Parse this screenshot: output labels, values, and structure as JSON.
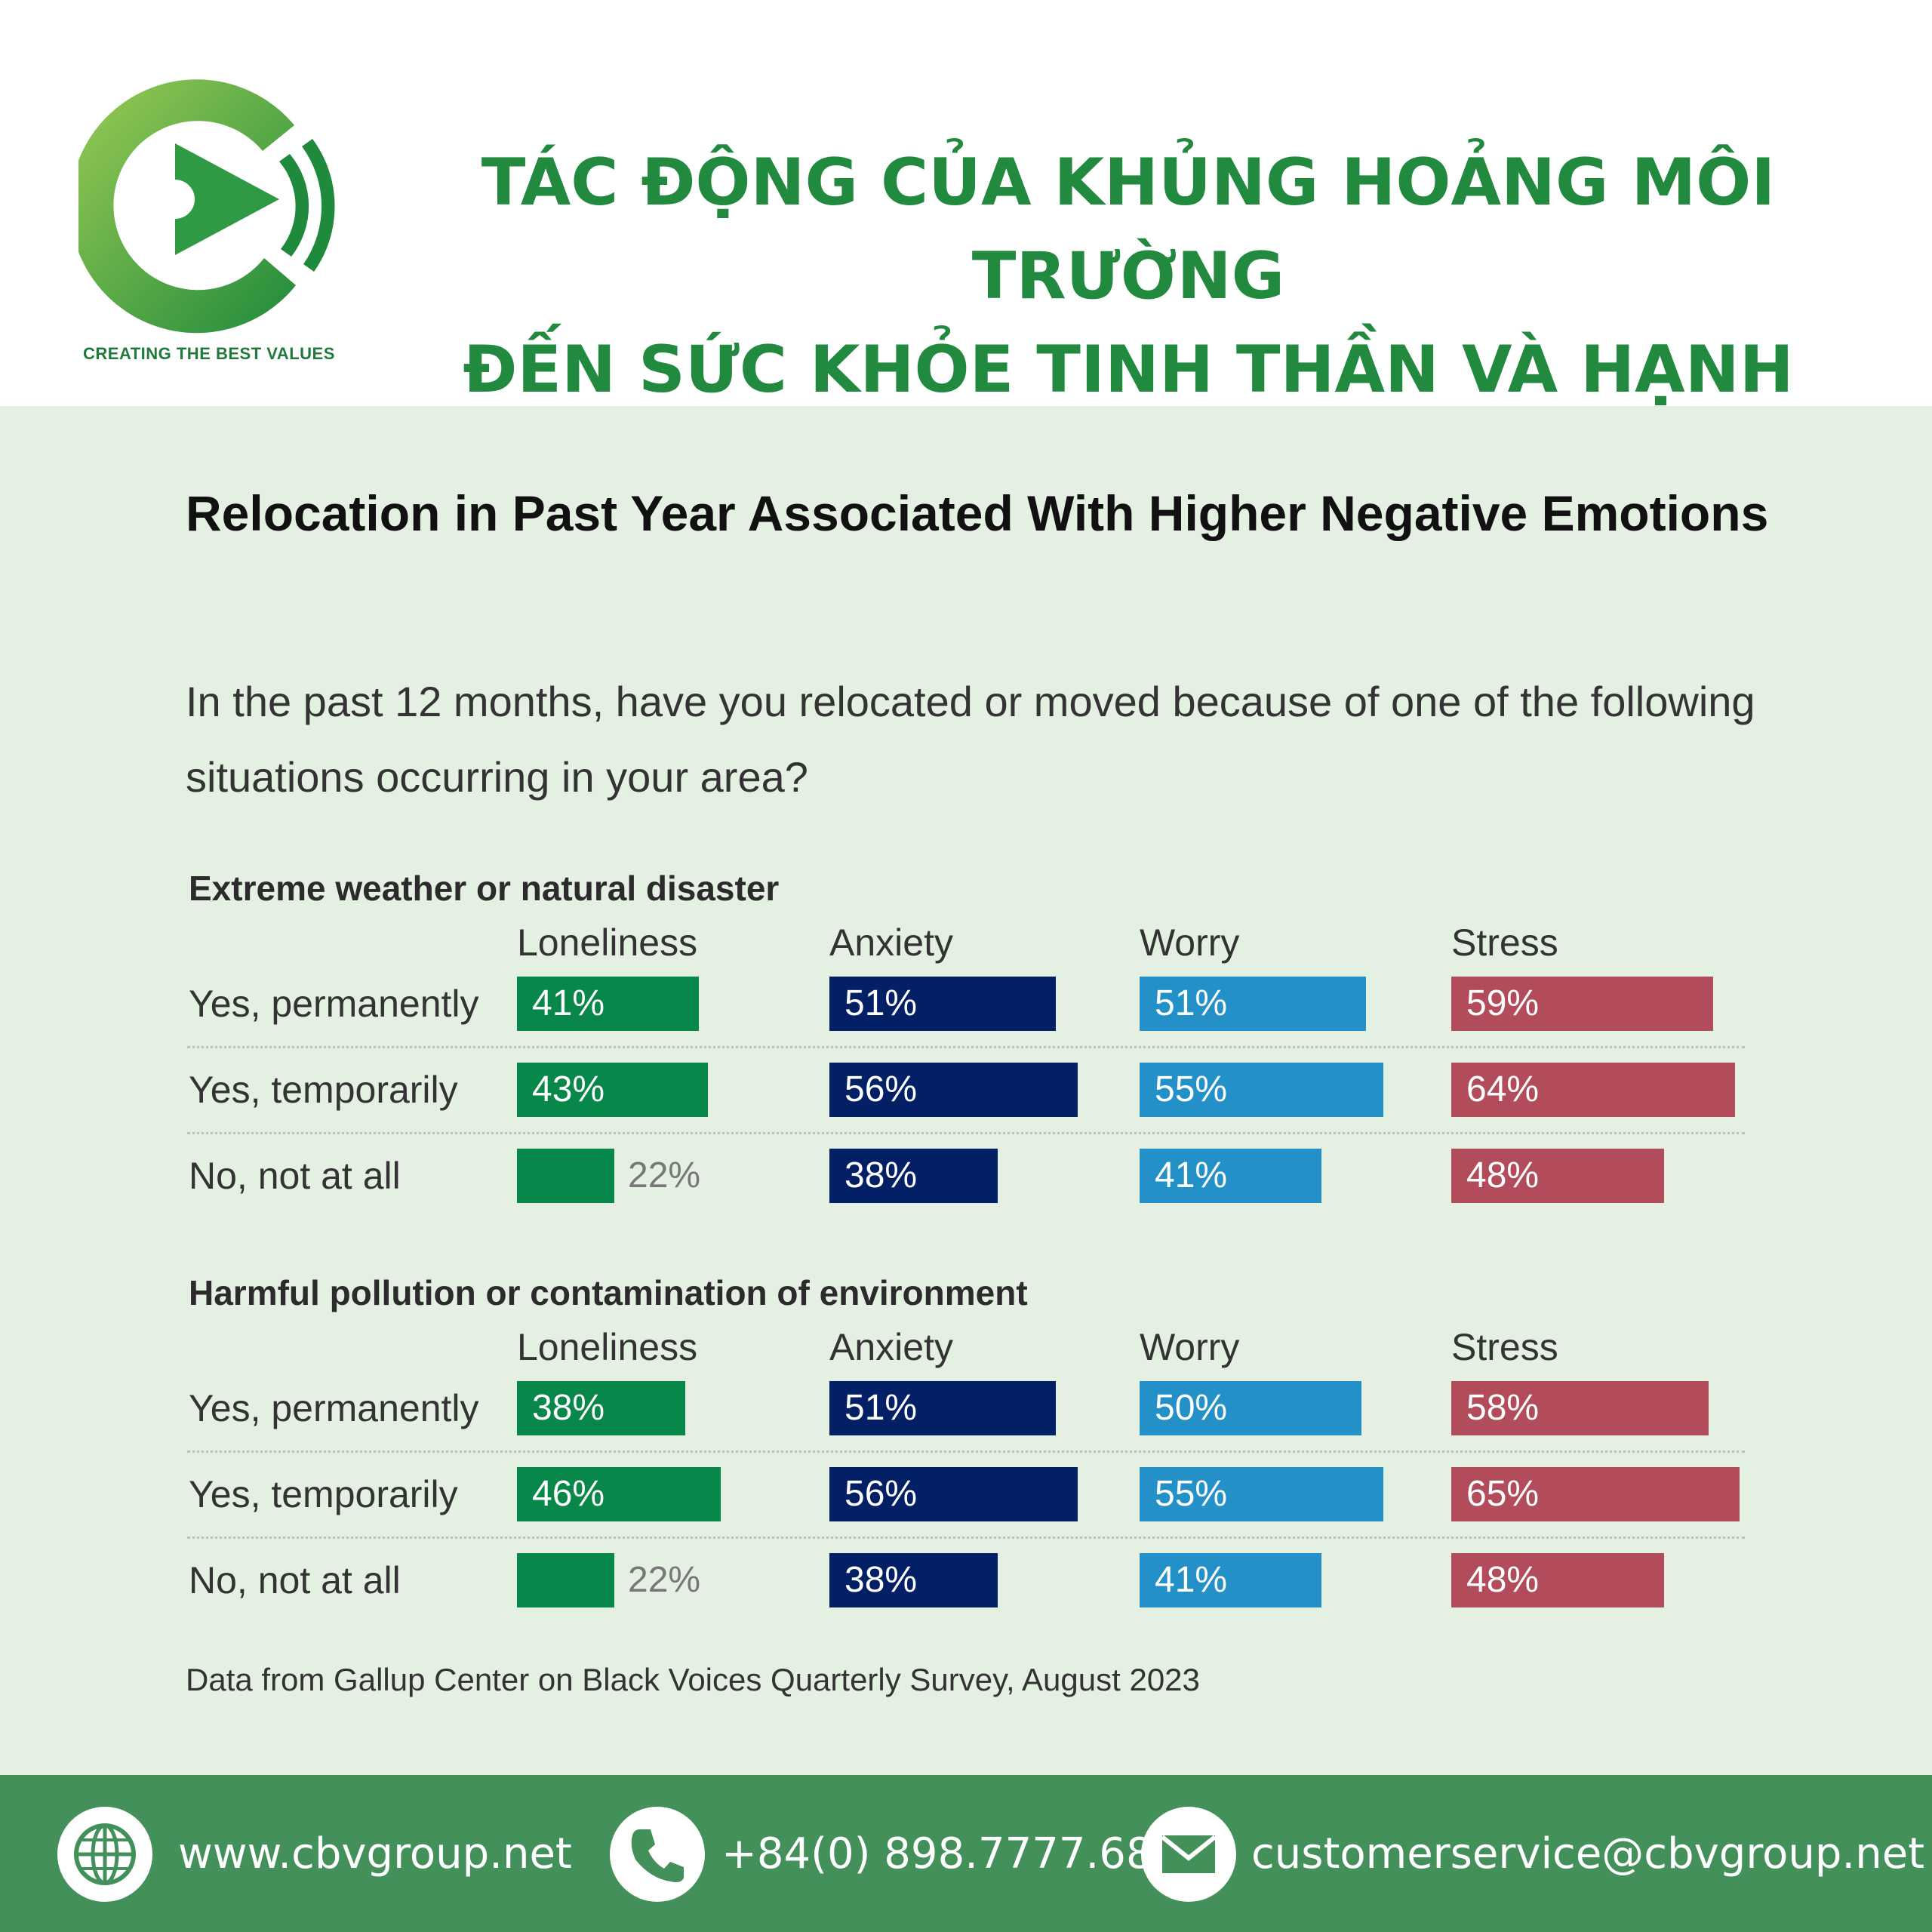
{
  "header": {
    "title_line1": "TÁC ĐỘNG CỦA KHỦNG HOẢNG MÔI TRƯỜNG",
    "title_line2": "ĐẾN SỨC KHỎE TINH THẦN VÀ HẠNH PHÚC",
    "tagline": "CREATING THE BEST VALUES",
    "logo_icon": "play-logo-icon"
  },
  "colors": {
    "brand_green": "#218a3f",
    "panel_bg": "#e4f1e2",
    "footer_bg": "#43905a",
    "loneliness": "#08874a",
    "anxiety": "#031f66",
    "worry": "#2390c8",
    "stress": "#b24c5b"
  },
  "chart_data": {
    "type": "bar",
    "title": "Relocation in Past Year Associated With Higher Negative Emotions",
    "subtitle": "In the past 12 months, have you relocated or moved because of one of the following situations occurring in your area?",
    "source": "Data from Gallup Center on Black Voices Quarterly Survey, August 2023",
    "metrics": [
      "Loneliness",
      "Anxiety",
      "Worry",
      "Stress"
    ],
    "rows": [
      "Yes, permanently",
      "Yes, temporarily",
      "No, not at all"
    ],
    "groups": [
      {
        "title": "Extreme weather or natural disaster",
        "series": [
          {
            "name": "Loneliness",
            "values": [
              41,
              43,
              22
            ]
          },
          {
            "name": "Anxiety",
            "values": [
              51,
              56,
              38
            ]
          },
          {
            "name": "Worry",
            "values": [
              51,
              55,
              41
            ]
          },
          {
            "name": "Stress",
            "values": [
              59,
              64,
              48
            ]
          }
        ]
      },
      {
        "title": "Harmful pollution or contamination of environment",
        "series": [
          {
            "name": "Loneliness",
            "values": [
              38,
              46,
              22
            ]
          },
          {
            "name": "Anxiety",
            "values": [
              51,
              56,
              38
            ]
          },
          {
            "name": "Worry",
            "values": [
              50,
              55,
              41
            ]
          },
          {
            "name": "Stress",
            "values": [
              58,
              65,
              48
            ]
          }
        ]
      }
    ]
  },
  "footer": {
    "website": "www.cbvgroup.net",
    "phone": "+84(0) 898.7777.68",
    "email": "customerservice@cbvgroup.net",
    "website_icon": "globe-icon",
    "phone_icon": "phone-icon",
    "email_icon": "mail-icon"
  }
}
